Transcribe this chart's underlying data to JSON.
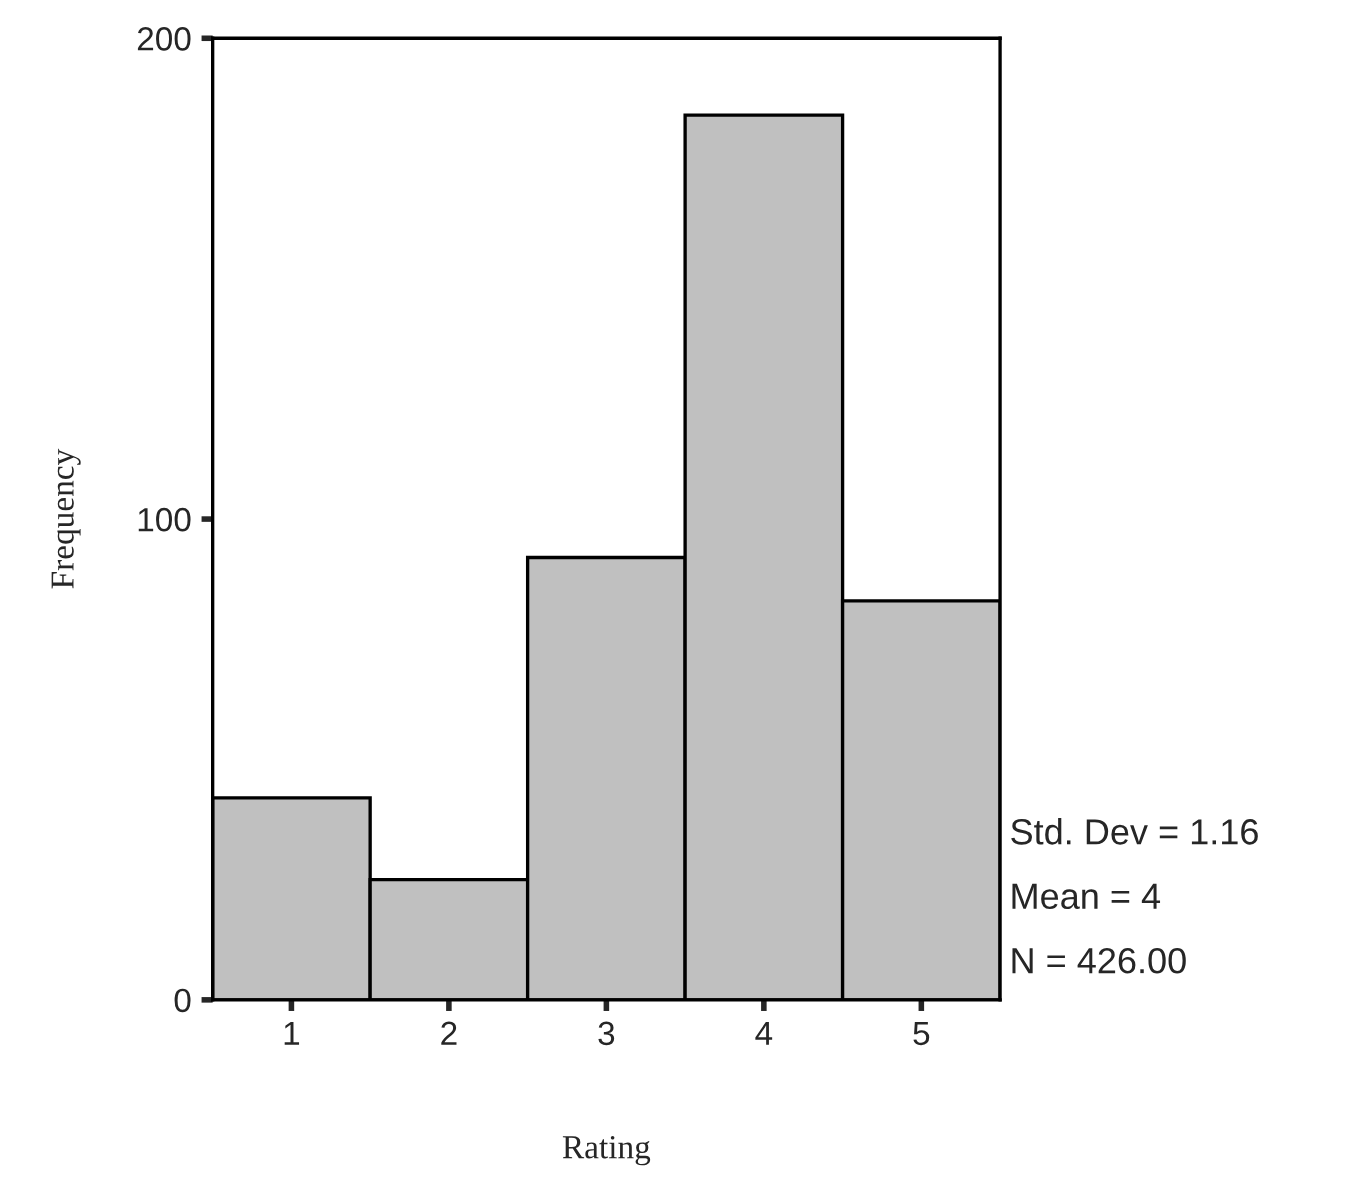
{
  "chart_data": {
    "type": "histogram",
    "xlabel": "Rating",
    "ylabel": "Frequency",
    "bins": [
      0.5,
      1.5,
      2.5,
      3.5,
      4.5,
      5.5
    ],
    "values": [
      42,
      25,
      92,
      184,
      83
    ],
    "color": "#c0c0c0",
    "xlim": [
      0.5,
      5.5
    ],
    "xticks": [
      1,
      2,
      3,
      4,
      5
    ],
    "ylim": [
      0,
      200
    ],
    "yticks": [
      0,
      100,
      200
    ],
    "grid": false,
    "legend": false,
    "annotations": [
      "Std. Dev = 1.16",
      "Mean = 4",
      "N = 426.00"
    ]
  }
}
